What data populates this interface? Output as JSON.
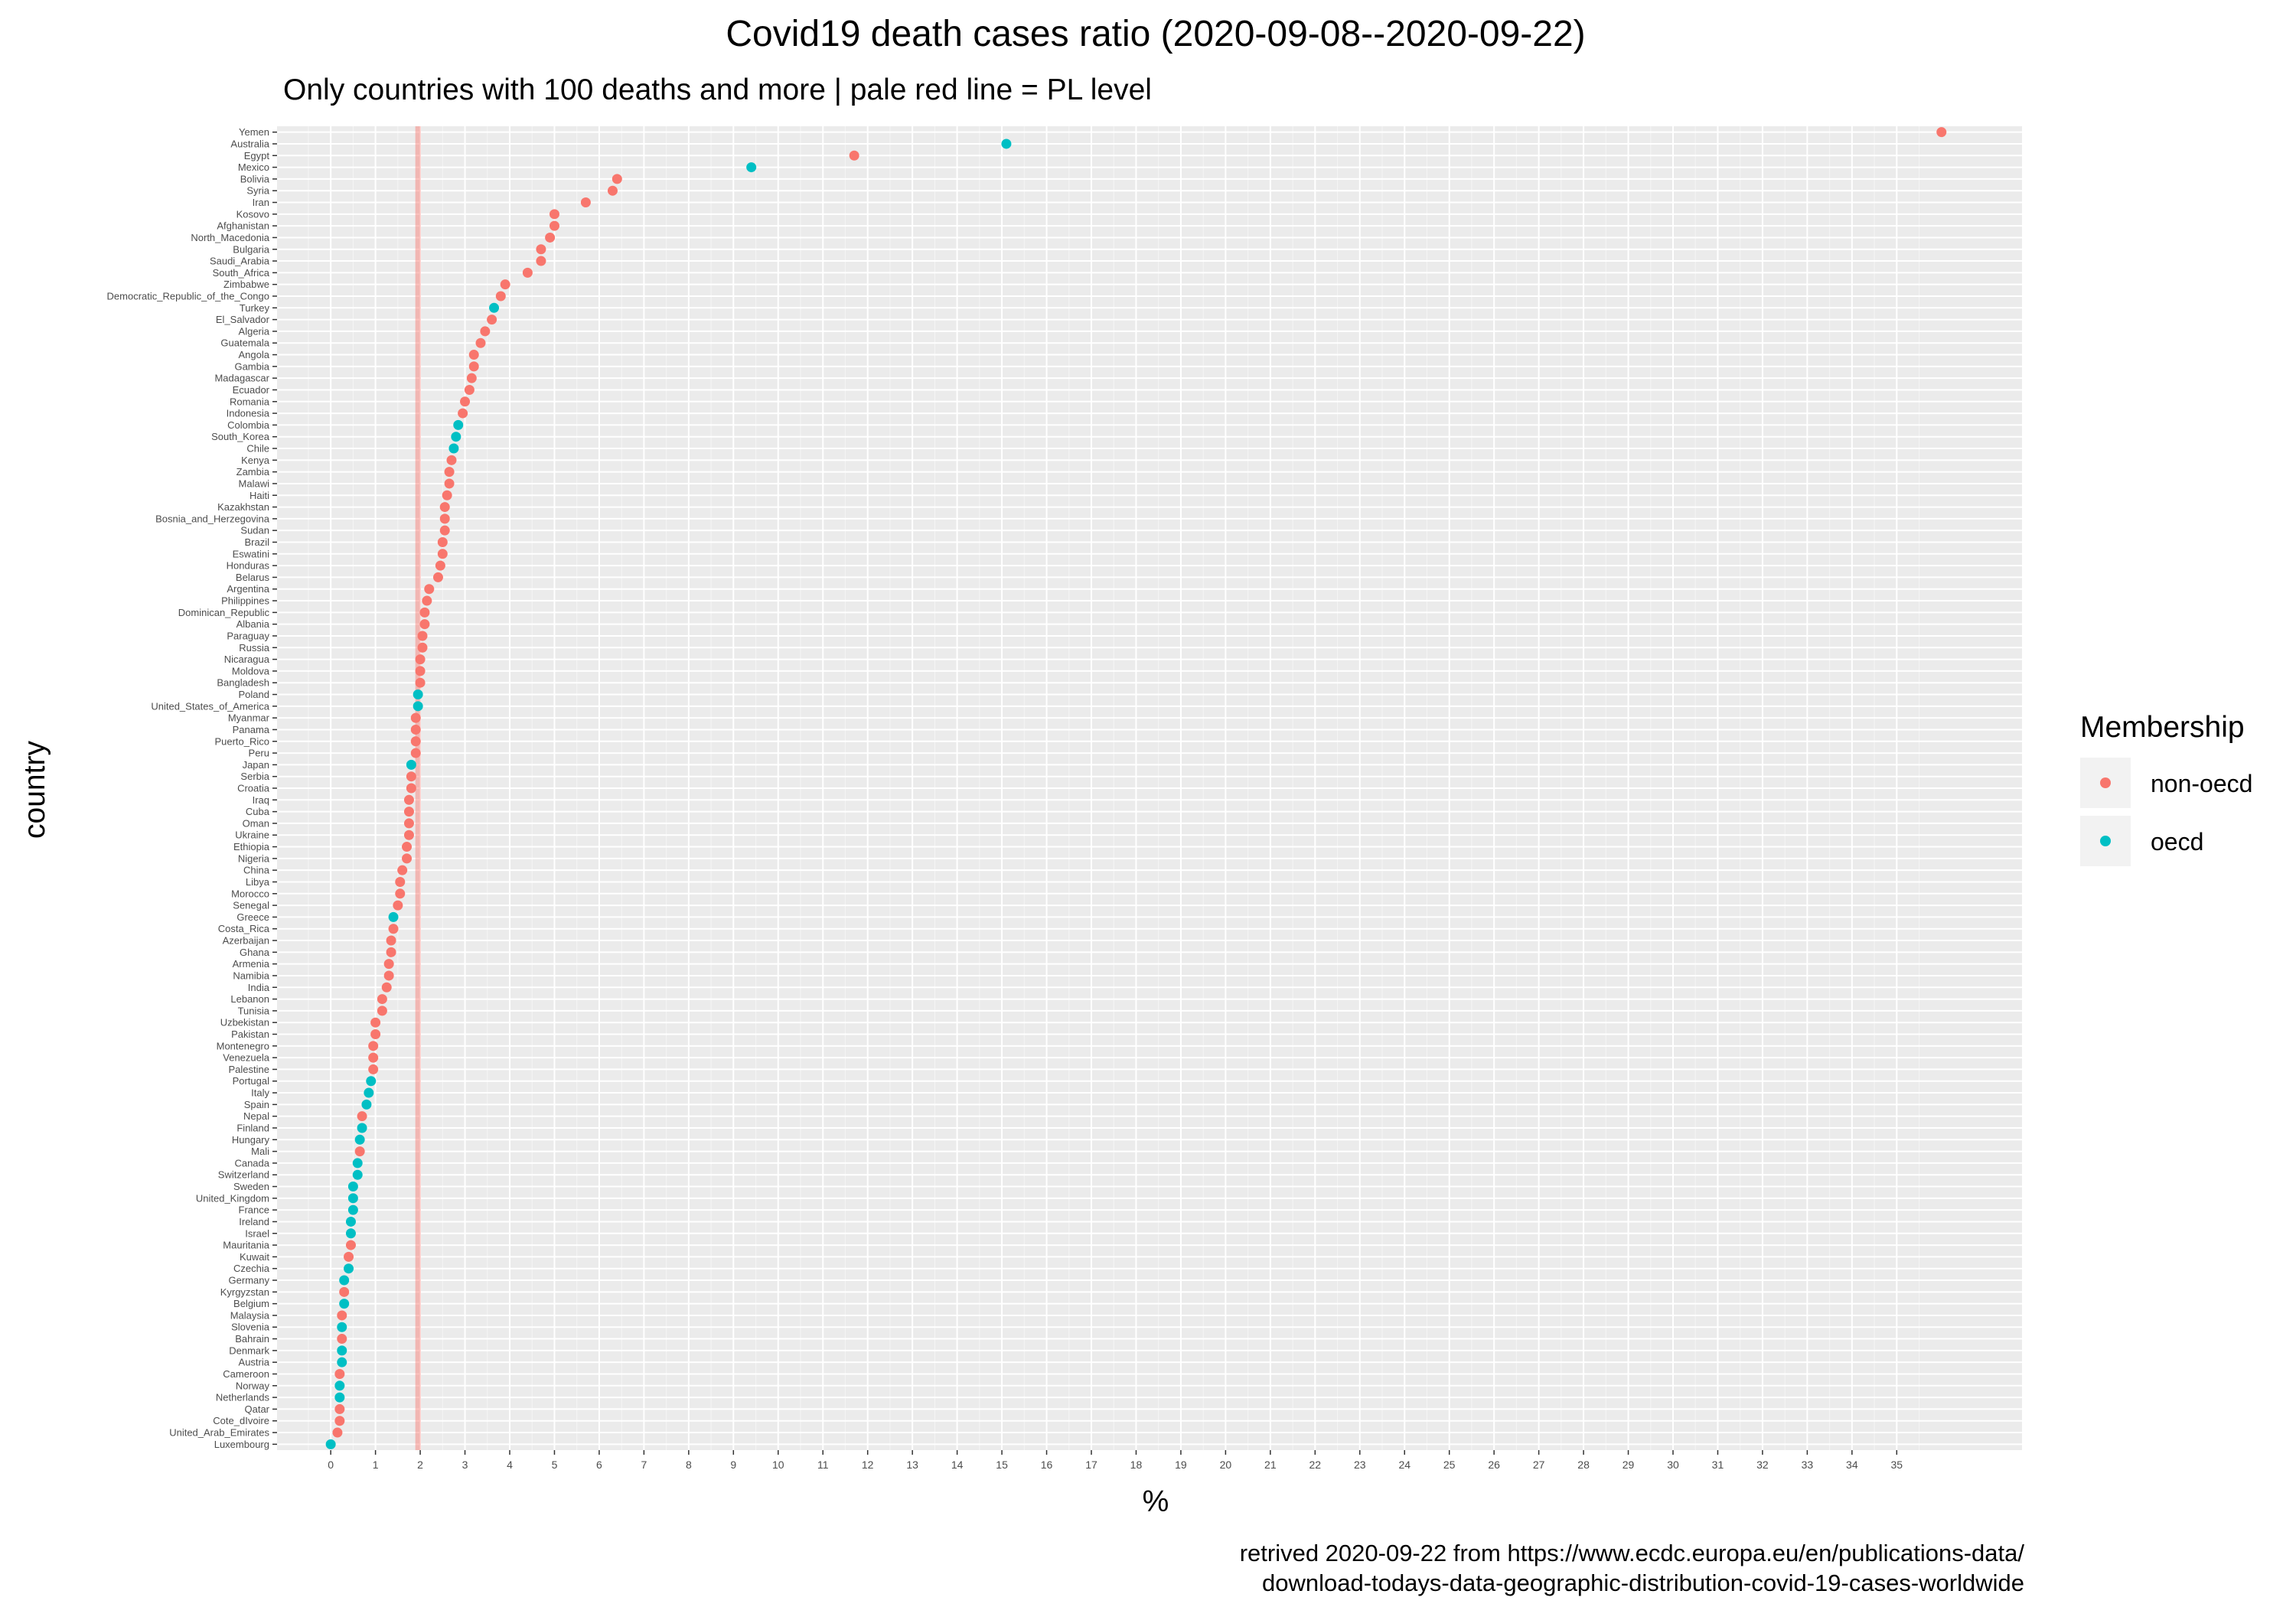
{
  "chart_data": {
    "type": "scatter",
    "title": "Covid19 death cases ratio (2020-09-08--2020-09-22)",
    "subtitle": "Only countries with 100 deaths and more | pale red line = PL level",
    "xlabel": "%",
    "ylabel": "country",
    "xlim": [
      -1.2,
      37.8
    ],
    "x_ticks": [
      "0",
      "1",
      "2",
      "3",
      "4",
      "5",
      "6",
      "7",
      "8",
      "9",
      "10",
      "11",
      "12",
      "13",
      "14",
      "15",
      "16",
      "17",
      "18",
      "19",
      "20",
      "21",
      "22",
      "23",
      "24",
      "25",
      "26",
      "27",
      "28",
      "29",
      "30",
      "31",
      "32",
      "33",
      "34",
      "35"
    ],
    "reference_line": {
      "x": 1.95,
      "color": "#f8766d",
      "label": "PL level"
    },
    "grid": true,
    "legend": {
      "title": "Membership",
      "position": "right",
      "entries": [
        {
          "label": "non-oecd",
          "color": "#f8766d"
        },
        {
          "label": "oecd",
          "color": "#00bfc4"
        }
      ]
    },
    "caption": [
      "retrived 2020-09-22 from https://www.ecdc.europa.eu/en/publications-data/",
      "download-todays-data-geographic-distribution-covid-19-cases-worldwide"
    ],
    "points": [
      {
        "country": "Yemen",
        "value": 36.0,
        "membership": "non-oecd"
      },
      {
        "country": "Australia",
        "value": 15.1,
        "membership": "oecd"
      },
      {
        "country": "Egypt",
        "value": 11.7,
        "membership": "non-oecd"
      },
      {
        "country": "Mexico",
        "value": 9.4,
        "membership": "oecd"
      },
      {
        "country": "Bolivia",
        "value": 6.4,
        "membership": "non-oecd"
      },
      {
        "country": "Syria",
        "value": 6.3,
        "membership": "non-oecd"
      },
      {
        "country": "Iran",
        "value": 5.7,
        "membership": "non-oecd"
      },
      {
        "country": "Kosovo",
        "value": 5.0,
        "membership": "non-oecd"
      },
      {
        "country": "Afghanistan",
        "value": 5.0,
        "membership": "non-oecd"
      },
      {
        "country": "North_Macedonia",
        "value": 4.9,
        "membership": "non-oecd"
      },
      {
        "country": "Bulgaria",
        "value": 4.7,
        "membership": "non-oecd"
      },
      {
        "country": "Saudi_Arabia",
        "value": 4.7,
        "membership": "non-oecd"
      },
      {
        "country": "South_Africa",
        "value": 4.4,
        "membership": "non-oecd"
      },
      {
        "country": "Zimbabwe",
        "value": 3.9,
        "membership": "non-oecd"
      },
      {
        "country": "Democratic_Republic_of_the_Congo",
        "value": 3.8,
        "membership": "non-oecd"
      },
      {
        "country": "Turkey",
        "value": 3.65,
        "membership": "oecd"
      },
      {
        "country": "El_Salvador",
        "value": 3.6,
        "membership": "non-oecd"
      },
      {
        "country": "Algeria",
        "value": 3.45,
        "membership": "non-oecd"
      },
      {
        "country": "Guatemala",
        "value": 3.35,
        "membership": "non-oecd"
      },
      {
        "country": "Angola",
        "value": 3.2,
        "membership": "non-oecd"
      },
      {
        "country": "Gambia",
        "value": 3.2,
        "membership": "non-oecd"
      },
      {
        "country": "Madagascar",
        "value": 3.15,
        "membership": "non-oecd"
      },
      {
        "country": "Ecuador",
        "value": 3.1,
        "membership": "non-oecd"
      },
      {
        "country": "Romania",
        "value": 3.0,
        "membership": "non-oecd"
      },
      {
        "country": "Indonesia",
        "value": 2.95,
        "membership": "non-oecd"
      },
      {
        "country": "Colombia",
        "value": 2.85,
        "membership": "oecd"
      },
      {
        "country": "South_Korea",
        "value": 2.8,
        "membership": "oecd"
      },
      {
        "country": "Chile",
        "value": 2.75,
        "membership": "oecd"
      },
      {
        "country": "Kenya",
        "value": 2.7,
        "membership": "non-oecd"
      },
      {
        "country": "Zambia",
        "value": 2.65,
        "membership": "non-oecd"
      },
      {
        "country": "Malawi",
        "value": 2.65,
        "membership": "non-oecd"
      },
      {
        "country": "Haiti",
        "value": 2.6,
        "membership": "non-oecd"
      },
      {
        "country": "Kazakhstan",
        "value": 2.55,
        "membership": "non-oecd"
      },
      {
        "country": "Bosnia_and_Herzegovina",
        "value": 2.55,
        "membership": "non-oecd"
      },
      {
        "country": "Sudan",
        "value": 2.55,
        "membership": "non-oecd"
      },
      {
        "country": "Brazil",
        "value": 2.5,
        "membership": "non-oecd"
      },
      {
        "country": "Eswatini",
        "value": 2.5,
        "membership": "non-oecd"
      },
      {
        "country": "Honduras",
        "value": 2.45,
        "membership": "non-oecd"
      },
      {
        "country": "Belarus",
        "value": 2.4,
        "membership": "non-oecd"
      },
      {
        "country": "Argentina",
        "value": 2.2,
        "membership": "non-oecd"
      },
      {
        "country": "Philippines",
        "value": 2.15,
        "membership": "non-oecd"
      },
      {
        "country": "Dominican_Republic",
        "value": 2.1,
        "membership": "non-oecd"
      },
      {
        "country": "Albania",
        "value": 2.1,
        "membership": "non-oecd"
      },
      {
        "country": "Paraguay",
        "value": 2.05,
        "membership": "non-oecd"
      },
      {
        "country": "Russia",
        "value": 2.05,
        "membership": "non-oecd"
      },
      {
        "country": "Nicaragua",
        "value": 2.0,
        "membership": "non-oecd"
      },
      {
        "country": "Moldova",
        "value": 2.0,
        "membership": "non-oecd"
      },
      {
        "country": "Bangladesh",
        "value": 2.0,
        "membership": "non-oecd"
      },
      {
        "country": "Poland",
        "value": 1.95,
        "membership": "oecd"
      },
      {
        "country": "United_States_of_America",
        "value": 1.95,
        "membership": "oecd"
      },
      {
        "country": "Myanmar",
        "value": 1.9,
        "membership": "non-oecd"
      },
      {
        "country": "Panama",
        "value": 1.9,
        "membership": "non-oecd"
      },
      {
        "country": "Puerto_Rico",
        "value": 1.9,
        "membership": "non-oecd"
      },
      {
        "country": "Peru",
        "value": 1.9,
        "membership": "non-oecd"
      },
      {
        "country": "Japan",
        "value": 1.8,
        "membership": "oecd"
      },
      {
        "country": "Serbia",
        "value": 1.8,
        "membership": "non-oecd"
      },
      {
        "country": "Croatia",
        "value": 1.8,
        "membership": "non-oecd"
      },
      {
        "country": "Iraq",
        "value": 1.75,
        "membership": "non-oecd"
      },
      {
        "country": "Cuba",
        "value": 1.75,
        "membership": "non-oecd"
      },
      {
        "country": "Oman",
        "value": 1.75,
        "membership": "non-oecd"
      },
      {
        "country": "Ukraine",
        "value": 1.75,
        "membership": "non-oecd"
      },
      {
        "country": "Ethiopia",
        "value": 1.7,
        "membership": "non-oecd"
      },
      {
        "country": "Nigeria",
        "value": 1.7,
        "membership": "non-oecd"
      },
      {
        "country": "China",
        "value": 1.6,
        "membership": "non-oecd"
      },
      {
        "country": "Libya",
        "value": 1.55,
        "membership": "non-oecd"
      },
      {
        "country": "Morocco",
        "value": 1.55,
        "membership": "non-oecd"
      },
      {
        "country": "Senegal",
        "value": 1.5,
        "membership": "non-oecd"
      },
      {
        "country": "Greece",
        "value": 1.4,
        "membership": "oecd"
      },
      {
        "country": "Costa_Rica",
        "value": 1.4,
        "membership": "non-oecd"
      },
      {
        "country": "Azerbaijan",
        "value": 1.35,
        "membership": "non-oecd"
      },
      {
        "country": "Ghana",
        "value": 1.35,
        "membership": "non-oecd"
      },
      {
        "country": "Armenia",
        "value": 1.3,
        "membership": "non-oecd"
      },
      {
        "country": "Namibia",
        "value": 1.3,
        "membership": "non-oecd"
      },
      {
        "country": "India",
        "value": 1.25,
        "membership": "non-oecd"
      },
      {
        "country": "Lebanon",
        "value": 1.15,
        "membership": "non-oecd"
      },
      {
        "country": "Tunisia",
        "value": 1.15,
        "membership": "non-oecd"
      },
      {
        "country": "Uzbekistan",
        "value": 1.0,
        "membership": "non-oecd"
      },
      {
        "country": "Pakistan",
        "value": 1.0,
        "membership": "non-oecd"
      },
      {
        "country": "Montenegro",
        "value": 0.95,
        "membership": "non-oecd"
      },
      {
        "country": "Venezuela",
        "value": 0.95,
        "membership": "non-oecd"
      },
      {
        "country": "Palestine",
        "value": 0.95,
        "membership": "non-oecd"
      },
      {
        "country": "Portugal",
        "value": 0.9,
        "membership": "oecd"
      },
      {
        "country": "Italy",
        "value": 0.85,
        "membership": "oecd"
      },
      {
        "country": "Spain",
        "value": 0.8,
        "membership": "oecd"
      },
      {
        "country": "Nepal",
        "value": 0.7,
        "membership": "non-oecd"
      },
      {
        "country": "Finland",
        "value": 0.7,
        "membership": "oecd"
      },
      {
        "country": "Hungary",
        "value": 0.65,
        "membership": "oecd"
      },
      {
        "country": "Mali",
        "value": 0.65,
        "membership": "non-oecd"
      },
      {
        "country": "Canada",
        "value": 0.6,
        "membership": "oecd"
      },
      {
        "country": "Switzerland",
        "value": 0.6,
        "membership": "oecd"
      },
      {
        "country": "Sweden",
        "value": 0.5,
        "membership": "oecd"
      },
      {
        "country": "United_Kingdom",
        "value": 0.5,
        "membership": "oecd"
      },
      {
        "country": "France",
        "value": 0.5,
        "membership": "oecd"
      },
      {
        "country": "Ireland",
        "value": 0.45,
        "membership": "oecd"
      },
      {
        "country": "Israel",
        "value": 0.45,
        "membership": "oecd"
      },
      {
        "country": "Mauritania",
        "value": 0.45,
        "membership": "non-oecd"
      },
      {
        "country": "Kuwait",
        "value": 0.4,
        "membership": "non-oecd"
      },
      {
        "country": "Czechia",
        "value": 0.4,
        "membership": "oecd"
      },
      {
        "country": "Germany",
        "value": 0.3,
        "membership": "oecd"
      },
      {
        "country": "Kyrgyzstan",
        "value": 0.3,
        "membership": "non-oecd"
      },
      {
        "country": "Belgium",
        "value": 0.3,
        "membership": "oecd"
      },
      {
        "country": "Malaysia",
        "value": 0.25,
        "membership": "non-oecd"
      },
      {
        "country": "Slovenia",
        "value": 0.25,
        "membership": "oecd"
      },
      {
        "country": "Bahrain",
        "value": 0.25,
        "membership": "non-oecd"
      },
      {
        "country": "Denmark",
        "value": 0.25,
        "membership": "oecd"
      },
      {
        "country": "Austria",
        "value": 0.25,
        "membership": "oecd"
      },
      {
        "country": "Cameroon",
        "value": 0.2,
        "membership": "non-oecd"
      },
      {
        "country": "Norway",
        "value": 0.2,
        "membership": "oecd"
      },
      {
        "country": "Netherlands",
        "value": 0.2,
        "membership": "oecd"
      },
      {
        "country": "Qatar",
        "value": 0.2,
        "membership": "non-oecd"
      },
      {
        "country": "Cote_dIvoire",
        "value": 0.2,
        "membership": "non-oecd"
      },
      {
        "country": "United_Arab_Emirates",
        "value": 0.15,
        "membership": "non-oecd"
      },
      {
        "country": "Luxembourg",
        "value": 0.0,
        "membership": "oecd"
      }
    ]
  }
}
